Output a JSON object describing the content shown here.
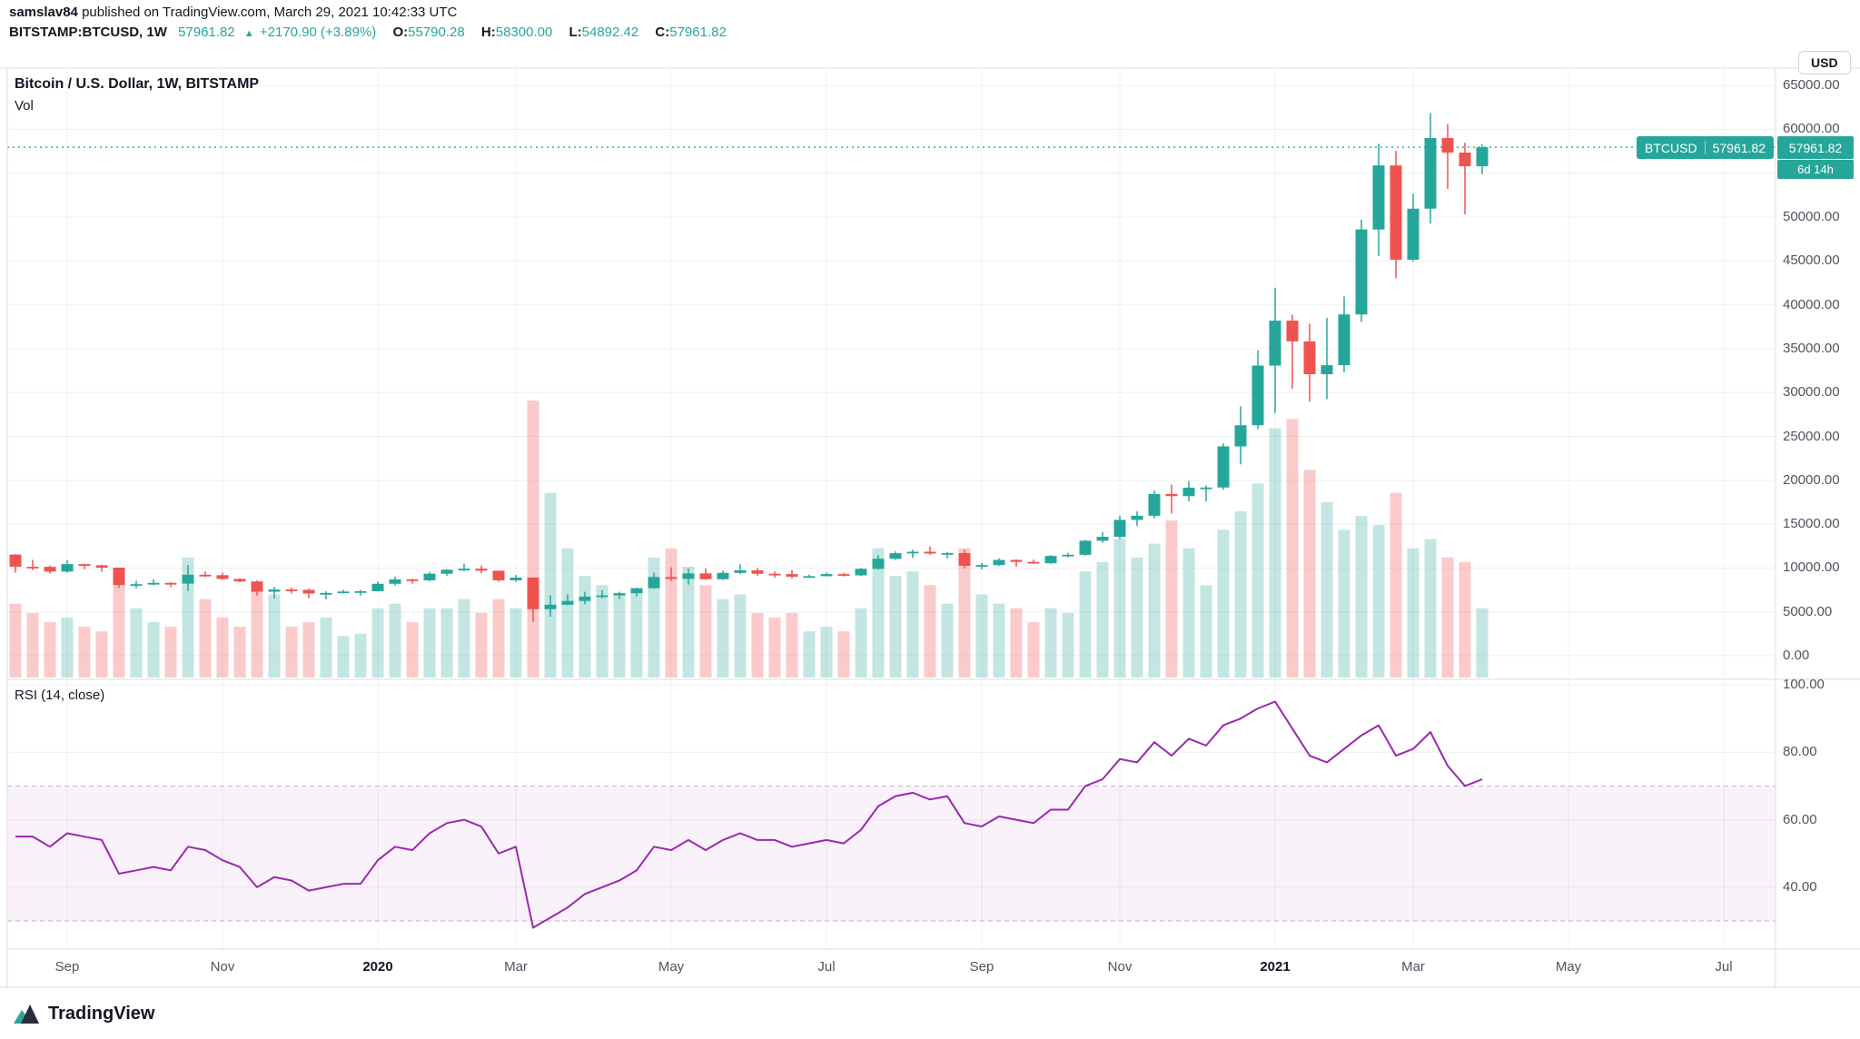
{
  "header": {
    "author": "samslav84",
    "suffix": " published on TradingView.com, March 29, 2021 10:42:33 UTC",
    "line2": {
      "symbol": "BITSTAMP:BTCUSD, 1W",
      "last": "57961.82",
      "arrow": "▲",
      "change": "+2170.90 (+3.89%)",
      "o_label": "O:",
      "o": "55790.28",
      "h_label": "H:",
      "h": "58300.00",
      "l_label": "L:",
      "l": "54892.42",
      "c_label": "C:",
      "c": "57961.82"
    }
  },
  "chart": {
    "legend_title": "Bitcoin / U.S. Dollar, 1W, BITSTAMP",
    "legend_vol": "Vol",
    "rsi_legend": "RSI (14, close)",
    "usd_button": "USD",
    "price_flag": {
      "symbol": "BTCUSD",
      "price": "57961.82"
    },
    "axis_last_price": "57961.82",
    "countdown": "6d 14h",
    "colors": {
      "up": "#26a69a",
      "down": "#ef5350",
      "vol_up": "rgba(38,166,154,0.28)",
      "vol_down": "rgba(239,83,80,0.30)",
      "rsi_line": "#9c27b0",
      "band_fill": "rgba(156,39,176,0.06)",
      "band_edge": "rgba(120,123,134,0.5)",
      "grid": "rgba(42,46,57,0.07)",
      "frame": "#dadde3",
      "accent": "#26a69a"
    }
  },
  "chart_data": {
    "type": "candlestick",
    "title": "Bitcoin / U.S. Dollar",
    "symbol": "BTCUSD",
    "exchange": "BITSTAMP",
    "interval": "1W",
    "start_date": "2019-08-12",
    "price_axis_ticks": [
      0,
      5000,
      10000,
      15000,
      20000,
      25000,
      30000,
      35000,
      40000,
      45000,
      50000,
      55000,
      60000,
      65000
    ],
    "rsi_axis_ticks": [
      100,
      80,
      60,
      40
    ],
    "rsi_band": [
      30,
      70
    ],
    "last_close": 57961.82,
    "time_ticks": [
      {
        "label": "Sep",
        "i": 3
      },
      {
        "label": "Nov",
        "i": 12
      },
      {
        "label": "2020",
        "i": 21
      },
      {
        "label": "Mar",
        "i": 29
      },
      {
        "label": "May",
        "i": 38
      },
      {
        "label": "Jul",
        "i": 47
      },
      {
        "label": "Sep",
        "i": 56
      },
      {
        "label": "Nov",
        "i": 64
      },
      {
        "label": "2021",
        "i": 73
      },
      {
        "label": "Mar",
        "i": 81
      },
      {
        "label": "May",
        "i": 90
      },
      {
        "label": "Jul",
        "i": 99
      }
    ],
    "candles_format": [
      "open",
      "high",
      "low",
      "close",
      "volume_k"
    ],
    "candles": [
      [
        11528,
        11585,
        9467,
        10138,
        160
      ],
      [
        10138,
        10930,
        9756,
        10131,
        140
      ],
      [
        10131,
        10279,
        9351,
        9594,
        120
      ],
      [
        9594,
        10898,
        9464,
        10441,
        130
      ],
      [
        10441,
        10458,
        9855,
        10311,
        110
      ],
      [
        10311,
        10377,
        9566,
        10041,
        100
      ],
      [
        10041,
        10046,
        7714,
        8060,
        230
      ],
      [
        8060,
        8539,
        7661,
        8151,
        150
      ],
      [
        8151,
        8715,
        8031,
        8300,
        120
      ],
      [
        8300,
        8410,
        7833,
        8222,
        110
      ],
      [
        8222,
        10350,
        7366,
        9230,
        260
      ],
      [
        9230,
        9590,
        8976,
        9180,
        170
      ],
      [
        9180,
        9460,
        8655,
        8750,
        130
      ],
      [
        8750,
        8849,
        8380,
        8465,
        110
      ],
      [
        8465,
        8578,
        6853,
        7295,
        200
      ],
      [
        7295,
        7860,
        6512,
        7543,
        180
      ],
      [
        7543,
        7754,
        7077,
        7509,
        110
      ],
      [
        7509,
        7649,
        6555,
        7092,
        120
      ],
      [
        7092,
        7345,
        6435,
        7147,
        130
      ],
      [
        7147,
        7501,
        7077,
        7317,
        90
      ],
      [
        7317,
        7495,
        6850,
        7354,
        95
      ],
      [
        7354,
        8463,
        7320,
        8201,
        150
      ],
      [
        8201,
        9008,
        8001,
        8700,
        160
      ],
      [
        8700,
        8786,
        8219,
        8598,
        120
      ],
      [
        8598,
        9553,
        8468,
        9350,
        150
      ],
      [
        9350,
        9861,
        9091,
        9805,
        150
      ],
      [
        9805,
        10500,
        9648,
        9918,
        170
      ],
      [
        9918,
        10285,
        9398,
        9690,
        140
      ],
      [
        9690,
        9706,
        8443,
        8599,
        170
      ],
      [
        8599,
        9203,
        8408,
        8905,
        150
      ],
      [
        8905,
        8938,
        3850,
        5305,
        600
      ],
      [
        5305,
        6901,
        4451,
        5811,
        400
      ],
      [
        5811,
        6982,
        5753,
        6245,
        280
      ],
      [
        6245,
        7295,
        5870,
        6740,
        220
      ],
      [
        6740,
        7468,
        6555,
        6876,
        200
      ],
      [
        6876,
        7290,
        6456,
        7131,
        180
      ],
      [
        7131,
        7781,
        6774,
        7699,
        190
      ],
      [
        7699,
        9464,
        7637,
        8973,
        260
      ],
      [
        8973,
        10074,
        8528,
        8756,
        280
      ],
      [
        8756,
        9939,
        8117,
        9385,
        240
      ],
      [
        9385,
        9954,
        8642,
        8720,
        200
      ],
      [
        8720,
        9703,
        8648,
        9446,
        170
      ],
      [
        9446,
        10429,
        9331,
        9746,
        180
      ],
      [
        9746,
        9988,
        9122,
        9342,
        140
      ],
      [
        9342,
        9589,
        8904,
        9303,
        130
      ],
      [
        9303,
        9775,
        8833,
        9012,
        140
      ],
      [
        9012,
        9232,
        8893,
        9068,
        100
      ],
      [
        9068,
        9480,
        9047,
        9302,
        110
      ],
      [
        9302,
        9445,
        9033,
        9164,
        100
      ],
      [
        9164,
        9989,
        9101,
        9905,
        150
      ],
      [
        9905,
        11444,
        9822,
        11053,
        280
      ],
      [
        11053,
        11909,
        10936,
        11683,
        220
      ],
      [
        11683,
        12091,
        11155,
        11852,
        230
      ],
      [
        11852,
        12468,
        11505,
        11649,
        200
      ],
      [
        11649,
        11829,
        11112,
        11702,
        160
      ],
      [
        11702,
        12067,
        9951,
        10251,
        280
      ],
      [
        10251,
        10581,
        9834,
        10331,
        180
      ],
      [
        10331,
        11099,
        10239,
        10920,
        160
      ],
      [
        10920,
        10987,
        10136,
        10695,
        150
      ],
      [
        10695,
        10953,
        10443,
        10541,
        120
      ],
      [
        10541,
        11483,
        10488,
        11368,
        150
      ],
      [
        11368,
        11725,
        11220,
        11504,
        140
      ],
      [
        11504,
        13218,
        11405,
        13108,
        230
      ],
      [
        13108,
        14075,
        12884,
        13555,
        250
      ],
      [
        13555,
        15955,
        13285,
        15482,
        300
      ],
      [
        15482,
        16480,
        14810,
        15955,
        260
      ],
      [
        15955,
        18818,
        15664,
        18432,
        290
      ],
      [
        18432,
        19484,
        16200,
        18193,
        340
      ],
      [
        18193,
        19903,
        17610,
        19154,
        280
      ],
      [
        19154,
        19420,
        17572,
        19174,
        200
      ],
      [
        19174,
        24209,
        18903,
        23861,
        320
      ],
      [
        23861,
        28422,
        21815,
        26272,
        360
      ],
      [
        26272,
        34810,
        25830,
        33071,
        420
      ],
      [
        33071,
        41950,
        27678,
        38192,
        540
      ],
      [
        38192,
        38874,
        30420,
        35828,
        560
      ],
      [
        35828,
        37850,
        28953,
        32088,
        450
      ],
      [
        32088,
        38531,
        29241,
        33114,
        380
      ],
      [
        33114,
        40955,
        32296,
        38903,
        320
      ],
      [
        38903,
        49707,
        38057,
        48585,
        350
      ],
      [
        48585,
        58352,
        45570,
        55888,
        330
      ],
      [
        55888,
        57557,
        43016,
        45137,
        400
      ],
      [
        45137,
        52640,
        44950,
        50959,
        280
      ],
      [
        50959,
        61844,
        49274,
        59010,
        300
      ],
      [
        59010,
        60595,
        53221,
        57351,
        260
      ],
      [
        57351,
        58471,
        50305,
        55790.28,
        250
      ],
      [
        55790.28,
        58300,
        54892.42,
        57961.82,
        150
      ]
    ],
    "rsi": [
      55,
      55,
      52,
      56,
      55,
      54,
      44,
      45,
      46,
      45,
      52,
      51,
      48,
      46,
      40,
      43,
      42,
      39,
      40,
      41,
      41,
      48,
      52,
      51,
      56,
      59,
      60,
      58,
      50,
      52,
      28,
      31,
      34,
      38,
      40,
      42,
      45,
      52,
      51,
      54,
      51,
      54,
      56,
      54,
      54,
      52,
      53,
      54,
      53,
      57,
      64,
      67,
      68,
      66,
      67,
      59,
      58,
      61,
      60,
      59,
      63,
      63,
      70,
      72,
      78,
      77,
      83,
      79,
      84,
      82,
      88,
      90,
      93,
      95,
      87,
      79,
      77,
      81,
      85,
      88,
      79,
      81,
      86,
      76,
      70,
      72
    ]
  },
  "footer": {
    "brand": "TradingView"
  }
}
